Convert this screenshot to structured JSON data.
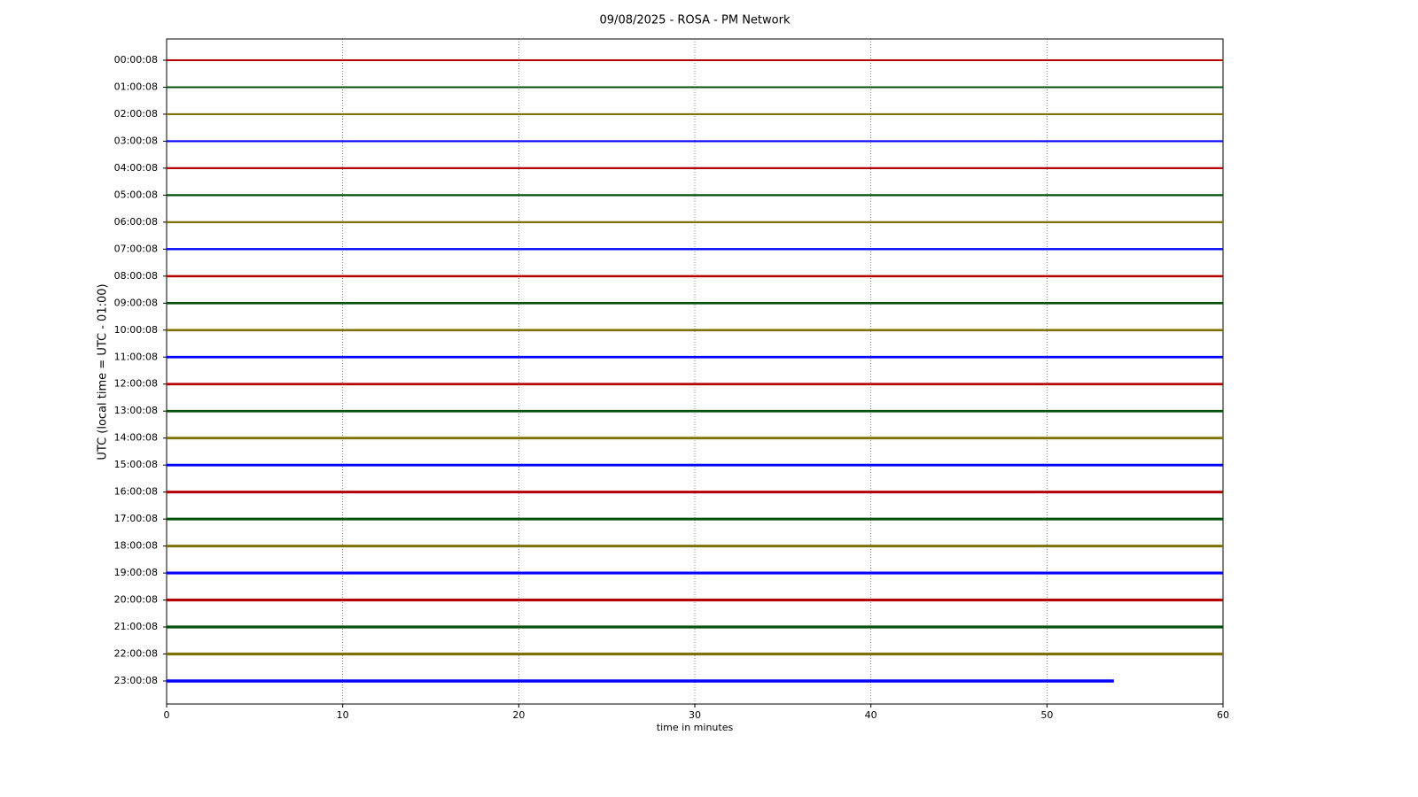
{
  "chart_data": {
    "type": "helicorder",
    "title": "09/08/2025 - ROSA - PM Network",
    "xlabel": "time in minutes",
    "ylabel": "UTC (local time = UTC - 01:00)",
    "xlim": [
      0,
      60
    ],
    "xticks": [
      0,
      10,
      20,
      30,
      40,
      50,
      60
    ],
    "grid": true,
    "colors": [
      "#b40000",
      "#00500a",
      "#807000",
      "#0000ff"
    ],
    "categories": [
      "00:00:08",
      "01:00:08",
      "02:00:08",
      "03:00:08",
      "04:00:08",
      "05:00:08",
      "06:00:08",
      "07:00:08",
      "08:00:08",
      "09:00:08",
      "10:00:08",
      "11:00:08",
      "12:00:08",
      "13:00:08",
      "14:00:08",
      "15:00:08",
      "16:00:08",
      "17:00:08",
      "18:00:08",
      "19:00:08",
      "20:00:08",
      "21:00:08",
      "22:00:08",
      "23:00:08"
    ],
    "values": [
      60,
      60,
      60,
      60,
      60,
      60,
      60,
      60,
      60,
      60,
      60,
      60,
      60,
      60,
      60,
      60,
      60,
      60,
      60,
      60,
      60,
      60,
      60,
      53.8
    ]
  }
}
